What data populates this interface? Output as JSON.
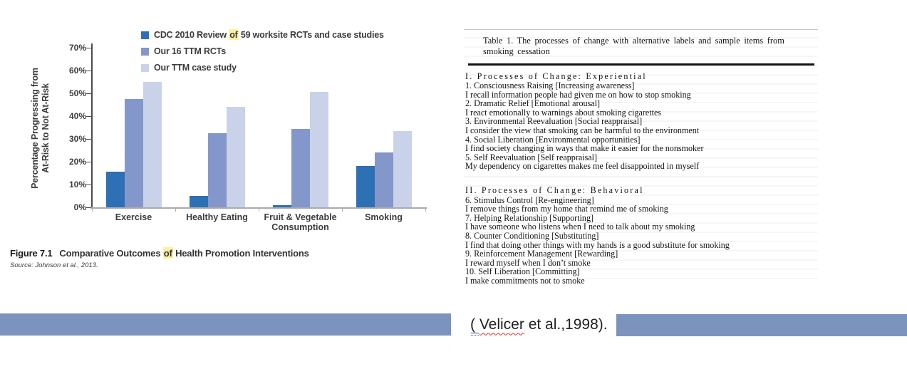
{
  "chart_data": {
    "type": "bar",
    "title": "",
    "categories": [
      "Exercise",
      "Healthy Eating",
      "Fruit & Vegetable Consumption",
      "Smoking"
    ],
    "series": [
      {
        "name": "CDC 2010 Review of 59 worksite RCTs and case studies",
        "color": "#2d70b4",
        "values": [
          15.5,
          5,
          1,
          18
        ]
      },
      {
        "name": "Our 16 TTM RCTs",
        "color": "#8497ca",
        "values": [
          47.5,
          32.5,
          34.5,
          24
        ]
      },
      {
        "name": "Our TTM case study",
        "color": "#c9d2e9",
        "values": [
          55,
          44,
          50.5,
          33.5
        ]
      }
    ],
    "xlabel": "",
    "ylabel": "Percentage Progressing from At-Risk to Not At-Risk",
    "ylabel_line1": "Percentage Progressing from",
    "ylabel_line2": "At-Risk to Not At-Risk",
    "ylim": [
      0,
      70
    ],
    "yticks": [
      "70%",
      "60%",
      "50%",
      "40%",
      "30%",
      "20%",
      "10%",
      "0%"
    ],
    "grid": false,
    "legend_position": "top"
  },
  "legend": [
    {
      "pre": "CDC 2010 Review ",
      "highlight": "of",
      "post": " 59 worksite RCTs and case studies",
      "color": "#2d70b4"
    },
    {
      "pre": "Our 16 TTM RCTs",
      "highlight": "",
      "post": "",
      "color": "#8497ca"
    },
    {
      "pre": "Our TTM case study",
      "highlight": "",
      "post": "",
      "color": "#c9d2e9"
    }
  ],
  "figure": {
    "caption_label": "Figure 7.1",
    "caption_pre": "Comparative Outcomes ",
    "caption_highlight": "of",
    "caption_post": " Health Promotion Interventions",
    "source": "Source: Johnson et al., 2013."
  },
  "table": {
    "title": "Table 1. The processes of change with alternative labels and sample items from smoking cessation",
    "sections": [
      {
        "heading": "I. Processes of Change: Experiential",
        "lines": [
          "1. Consciousness Raising [Increasing awareness]",
          "I recall information people had given me on how to stop smoking",
          "2. Dramatic Relief [Emotional arousal]",
          "I react emotionally to warnings about smoking cigarettes",
          "3. Environmental Reevaluation [Social reappraisal]",
          "I consider the view that smoking can be harmful to the environment",
          "4. Social Liberation [Environmental opportunities]",
          "I find society changing in ways that make it easier for the nonsmoker",
          "5. Self Reevaluation [Self reappraisal]",
          "My dependency on cigarettes makes me feel disappointed in myself"
        ]
      },
      {
        "heading": "II. Processes of Change: Behavioral",
        "lines": [
          "6. Stimulus Control [Re-engineering]",
          "I remove things from my home that remind me of smoking",
          "7. Helping Relationship [Supporting]",
          "I have someone who listens when I need to talk about my smoking",
          "8. Counter Conditioning [Substituting]",
          "I find that doing other things with my hands is a good substitute for smoking",
          "9. Reinforcement Management [Rewarding]",
          "I reward myself when I don’t smoke",
          "10. Self Liberation [Committing]",
          "I make commitments not to smoke"
        ]
      }
    ]
  },
  "banner": {
    "citation_open": "( ",
    "citation_word": "Velicer",
    "citation_rest": " et al.,1998).",
    "bar_color": "#7b93bd"
  }
}
